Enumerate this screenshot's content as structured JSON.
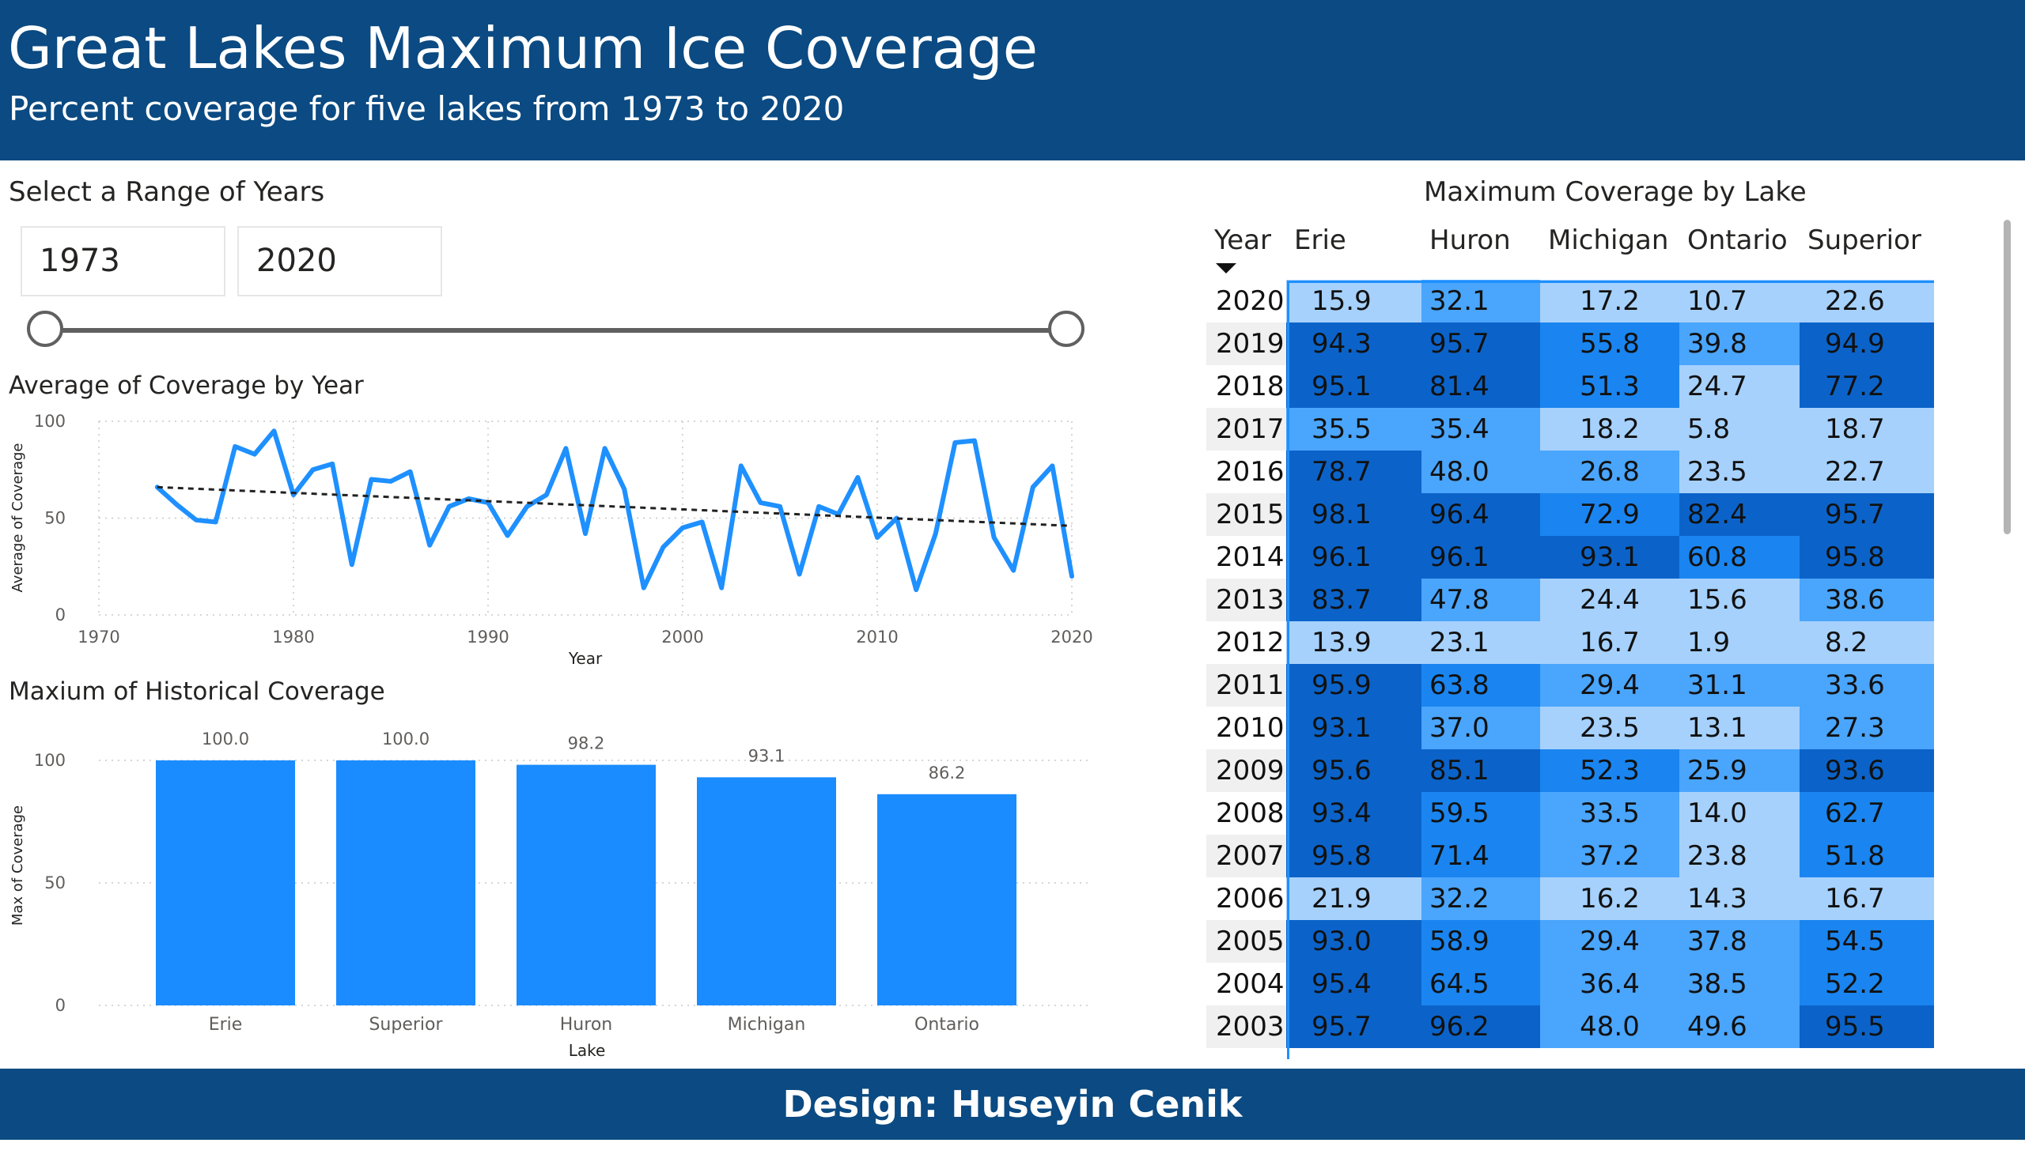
{
  "header": {
    "title": "Great Lakes Maximum Ice Coverage",
    "subtitle": "Percent coverage for five lakes from 1973 to 2020"
  },
  "slicer": {
    "title": "Select a Range of Years",
    "start": "1973",
    "end": "2020"
  },
  "footer": {
    "text": "Design: Huseyin Cenik"
  },
  "table": {
    "title": "Maximum Coverage by Lake",
    "columns": [
      "Year",
      "Erie",
      "Huron",
      "Michigan",
      "Ontario",
      "Superior"
    ],
    "rows": [
      [
        "2020",
        "15.9",
        "32.1",
        "17.2",
        "10.7",
        "22.6"
      ],
      [
        "2019",
        "94.3",
        "95.7",
        "55.8",
        "39.8",
        "94.9"
      ],
      [
        "2018",
        "95.1",
        "81.4",
        "51.3",
        "24.7",
        "77.2"
      ],
      [
        "2017",
        "35.5",
        "35.4",
        "18.2",
        "5.8",
        "18.7"
      ],
      [
        "2016",
        "78.7",
        "48.0",
        "26.8",
        "23.5",
        "22.7"
      ],
      [
        "2015",
        "98.1",
        "96.4",
        "72.9",
        "82.4",
        "95.7"
      ],
      [
        "2014",
        "96.1",
        "96.1",
        "93.1",
        "60.8",
        "95.8"
      ],
      [
        "2013",
        "83.7",
        "47.8",
        "24.4",
        "15.6",
        "38.6"
      ],
      [
        "2012",
        "13.9",
        "23.1",
        "16.7",
        "1.9",
        "8.2"
      ],
      [
        "2011",
        "95.9",
        "63.8",
        "29.4",
        "31.1",
        "33.6"
      ],
      [
        "2010",
        "93.1",
        "37.0",
        "23.5",
        "13.1",
        "27.3"
      ],
      [
        "2009",
        "95.6",
        "85.1",
        "52.3",
        "25.9",
        "93.6"
      ],
      [
        "2008",
        "93.4",
        "59.5",
        "33.5",
        "14.0",
        "62.7"
      ],
      [
        "2007",
        "95.8",
        "71.4",
        "37.2",
        "23.8",
        "51.8"
      ],
      [
        "2006",
        "21.9",
        "32.2",
        "16.2",
        "14.3",
        "16.7"
      ],
      [
        "2005",
        "93.0",
        "58.9",
        "29.4",
        "37.8",
        "54.5"
      ],
      [
        "2004",
        "95.4",
        "64.5",
        "36.4",
        "38.5",
        "52.2"
      ],
      [
        "2003",
        "95.7",
        "96.2",
        "48.0",
        "49.6",
        "95.5"
      ]
    ],
    "cell_colors": [
      "#a6d1fd",
      "#4aa5fc",
      "#1a85f0",
      "#0b63c9"
    ]
  },
  "colors": {
    "header_bg": "#0b4a82",
    "line": "#1e90ff",
    "bar": "#1a8cff",
    "trend": "#222222"
  },
  "chart_data": [
    {
      "type": "line",
      "title": "Average of Coverage by Year",
      "xlabel": "Year",
      "ylabel": "Average of Coverage",
      "xlim": [
        1970,
        2020
      ],
      "ylim": [
        0,
        100
      ],
      "xticks": [
        1970,
        1980,
        1990,
        2000,
        2010,
        2020
      ],
      "yticks": [
        0,
        50,
        100
      ],
      "grid": true,
      "x": [
        1973,
        1974,
        1975,
        1976,
        1977,
        1978,
        1979,
        1980,
        1981,
        1982,
        1983,
        1984,
        1985,
        1986,
        1987,
        1988,
        1989,
        1990,
        1991,
        1992,
        1993,
        1994,
        1995,
        1996,
        1997,
        1998,
        1999,
        2000,
        2001,
        2002,
        2003,
        2004,
        2005,
        2006,
        2007,
        2008,
        2009,
        2010,
        2011,
        2012,
        2013,
        2014,
        2015,
        2016,
        2017,
        2018,
        2019,
        2020
      ],
      "series": [
        {
          "values": [
            66,
            57,
            49,
            48,
            87,
            83,
            95,
            62,
            75,
            78,
            26,
            70,
            69,
            74,
            36,
            56,
            60,
            58,
            41,
            56,
            62,
            86,
            42,
            86,
            65,
            14,
            35,
            45,
            48,
            14,
            77,
            58,
            56,
            21,
            56,
            52,
            71,
            40,
            50,
            13,
            42,
            89,
            90,
            40,
            23,
            66,
            77,
            20
          ]
        }
      ],
      "trendline": {
        "style": "dashed",
        "start": 66,
        "end": 46
      }
    },
    {
      "type": "bar",
      "title": "Maxium of Historical Coverage",
      "xlabel": "Lake",
      "ylabel": "Max of Coverage",
      "ylim": [
        0,
        100
      ],
      "yticks": [
        0,
        50,
        100
      ],
      "categories": [
        "Erie",
        "Superior",
        "Huron",
        "Michigan",
        "Ontario"
      ],
      "values": [
        100.0,
        100.0,
        98.2,
        93.1,
        86.2
      ],
      "data_labels": [
        "100.0",
        "100.0",
        "98.2",
        "93.1",
        "86.2"
      ]
    }
  ]
}
